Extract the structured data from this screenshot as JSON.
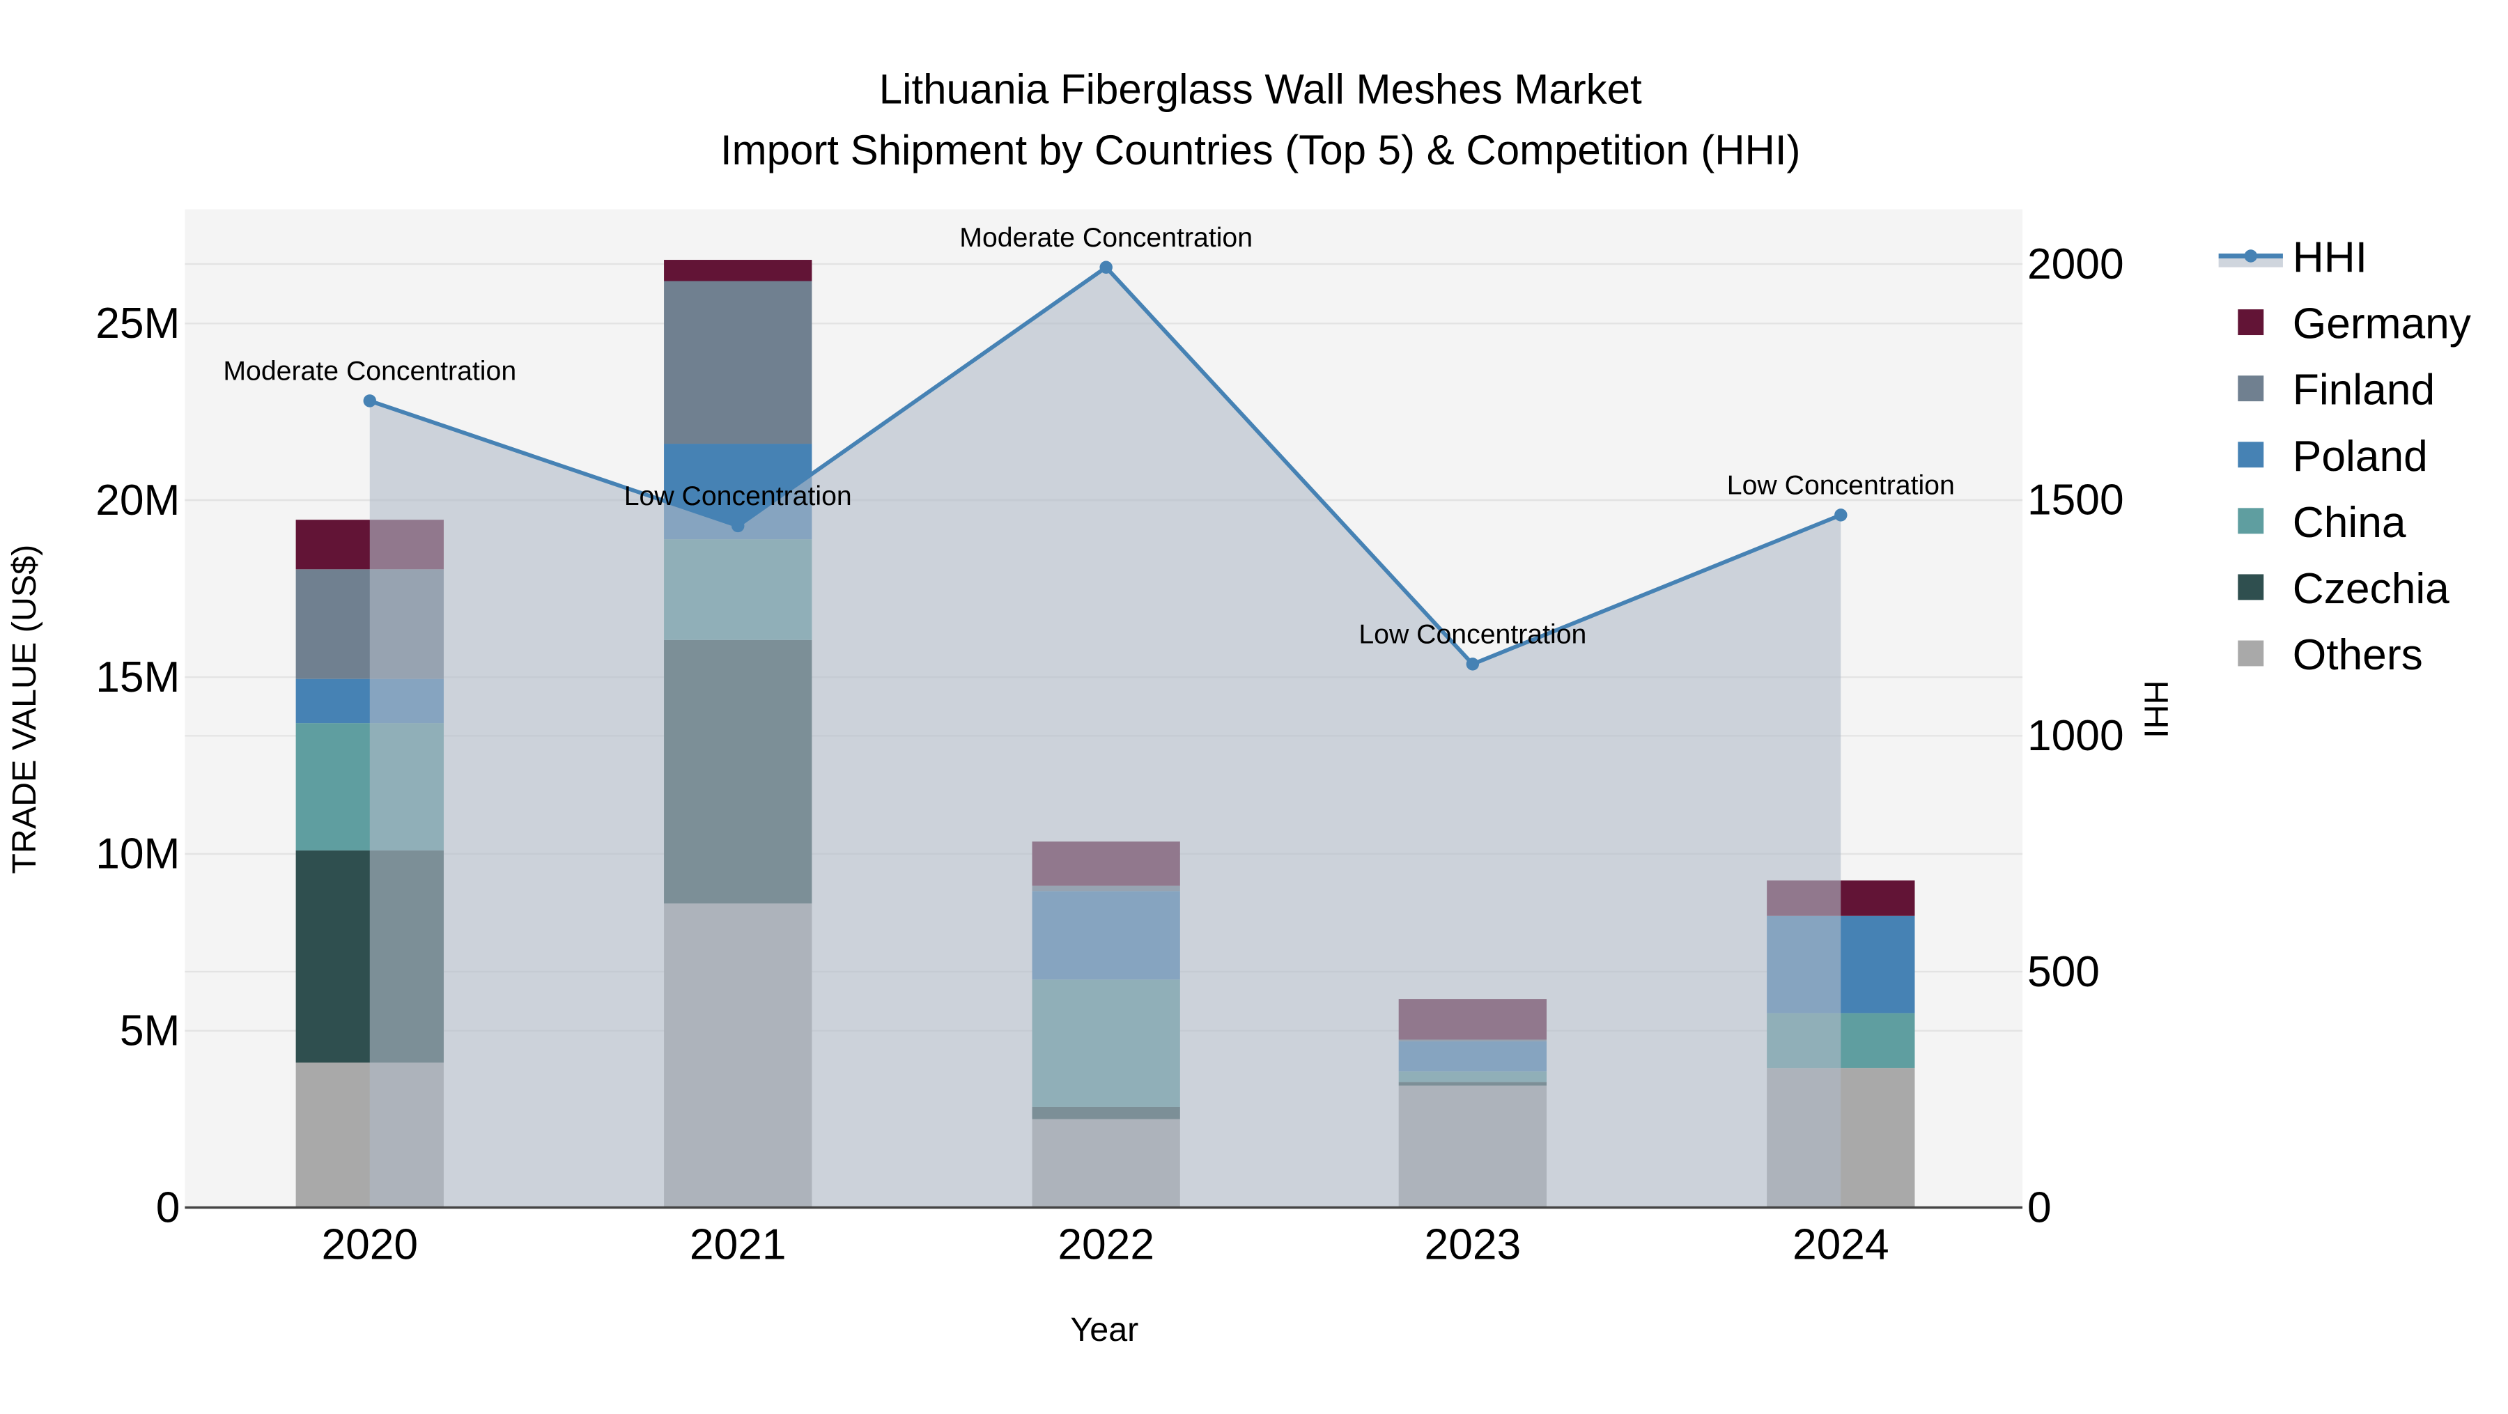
{
  "title_line1": "Lithuania Fiberglass Wall Meshes Market",
  "title_line2": "Import Shipment by Countries (Top 5) & Competition (HHI)",
  "x_axis_title": "Year",
  "y_axis_left_title": "TRADE VALUE (US$)",
  "y_axis_right_title": "HHI",
  "y_left_ticks": [
    "0",
    "5M",
    "10M",
    "15M",
    "20M",
    "25M"
  ],
  "y_right_ticks": [
    "0",
    "500",
    "1000",
    "1500",
    "2000"
  ],
  "legend": [
    {
      "name": "HHI",
      "color": "#4682b4",
      "type": "line"
    },
    {
      "name": "Germany",
      "color": "#621436",
      "type": "bar"
    },
    {
      "name": "Finland",
      "color": "#708090",
      "type": "bar"
    },
    {
      "name": "Poland",
      "color": "#4682b4",
      "type": "bar"
    },
    {
      "name": "China",
      "color": "#5f9ea0",
      "type": "bar"
    },
    {
      "name": "Czechia",
      "color": "#2f4f4f",
      "type": "bar"
    },
    {
      "name": "Others",
      "color": "#a9a9a9",
      "type": "bar"
    }
  ],
  "colors": {
    "plot_bg": "#f4f4f4",
    "grid": "#e3e3e3",
    "hhi_line": "#4682b4",
    "hhi_fill": "rgba(176,186,200,0.6)"
  },
  "chart_data": {
    "type": "bar",
    "stacked": true,
    "title": "Lithuania Fiberglass Wall Meshes Market — Import Shipment by Countries (Top 5) & Competition (HHI)",
    "xlabel": "Year",
    "ylabel": "TRADE VALUE (US$)",
    "y2label": "HHI",
    "categories": [
      "2020",
      "2021",
      "2022",
      "2023",
      "2024"
    ],
    "ylim": [
      0,
      28300000
    ],
    "y2lim": [
      0,
      2115
    ],
    "series": [
      {
        "name": "Others",
        "color": "#a9a9a9",
        "values": [
          4100000,
          8600000,
          2500000,
          3450000,
          3950000
        ]
      },
      {
        "name": "Czechia",
        "color": "#2f4f4f",
        "values": [
          6000000,
          7450000,
          350000,
          100000,
          0
        ]
      },
      {
        "name": "China",
        "color": "#5f9ea0",
        "values": [
          3600000,
          2850000,
          3600000,
          300000,
          1550000
        ]
      },
      {
        "name": "Poland",
        "color": "#4682b4",
        "values": [
          1250000,
          2700000,
          2500000,
          850000,
          2750000
        ]
      },
      {
        "name": "Finland",
        "color": "#708090",
        "values": [
          3100000,
          4600000,
          150000,
          50000,
          0
        ]
      },
      {
        "name": "Germany",
        "color": "#621436",
        "values": [
          1400000,
          600000,
          1250000,
          1150000,
          1000000
        ]
      }
    ],
    "line_series": {
      "name": "HHI",
      "axis": "right",
      "color": "#4682b4",
      "values": [
        1710,
        1445,
        1993,
        1152,
        1468
      ],
      "annotations": [
        "Moderate Concentration",
        "Low Concentration",
        "Moderate Concentration",
        "Low Concentration",
        "Low Concentration"
      ]
    },
    "grid": true,
    "legend_position": "right"
  }
}
